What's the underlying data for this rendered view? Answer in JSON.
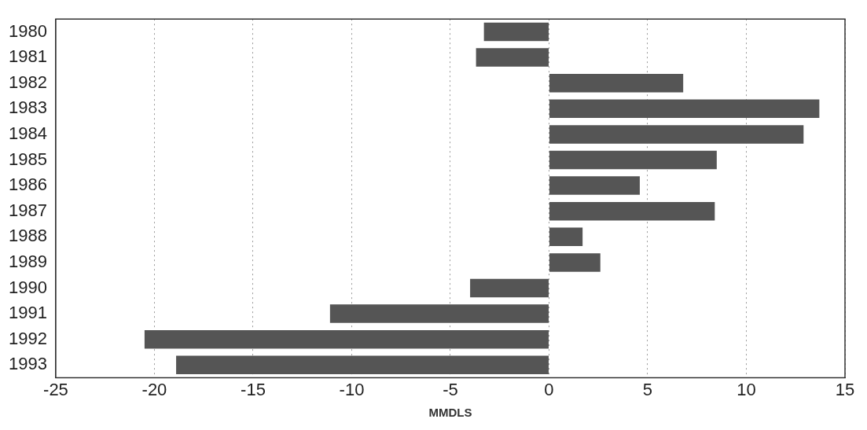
{
  "chart_data": {
    "type": "bar",
    "orientation": "horizontal",
    "xlabel": "MMDLS",
    "categories": [
      "1980",
      "1981",
      "1982",
      "1983",
      "1984",
      "1985",
      "1986",
      "1987",
      "1988",
      "1989",
      "1990",
      "1991",
      "1992",
      "1993"
    ],
    "values": [
      -3.3,
      -3.7,
      6.8,
      13.7,
      12.9,
      8.5,
      4.6,
      8.4,
      1.7,
      2.6,
      -4.0,
      -11.1,
      -20.5,
      -18.9
    ],
    "color": "#555555",
    "xlim": [
      -25,
      15
    ],
    "xticks": [
      -25,
      -20,
      -15,
      -10,
      -5,
      0,
      5,
      10,
      15
    ],
    "grid": "x"
  }
}
